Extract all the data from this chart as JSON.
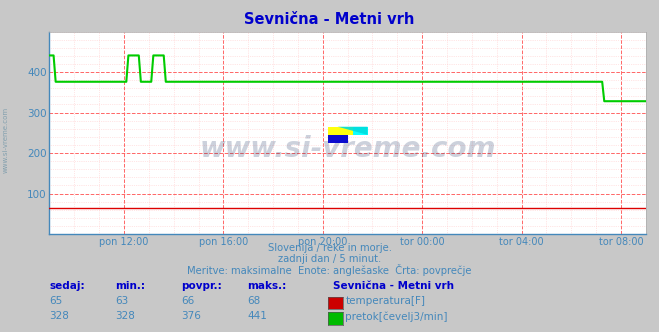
{
  "title": "Sevnična - Metni vrh",
  "title_color": "#0000cc",
  "bg_color": "#c8c8c8",
  "plot_bg_color": "#ffffff",
  "grid_color_major": "#ff6666",
  "grid_color_minor": "#ffcccc",
  "tick_color": "#4488bb",
  "text_color": "#4488bb",
  "bold_color": "#0000cc",
  "ylim": [
    0,
    500
  ],
  "yticks": [
    100,
    200,
    300,
    400
  ],
  "xtick_labels": [
    "pon 12:00",
    "pon 16:00",
    "pon 20:00",
    "tor 00:00",
    "tor 04:00",
    "tor 08:00"
  ],
  "xtick_positions": [
    3,
    7,
    11,
    15,
    19,
    23
  ],
  "xlim": [
    0,
    24
  ],
  "watermark": "www.si-vreme.com",
  "watermark_color": "#1a3060",
  "watermark_alpha": 0.22,
  "sub_text1": "Slovenija / reke in morje.",
  "sub_text2": "zadnji dan / 5 minut.",
  "sub_text3": "Meritve: maksimalne  Enote: anglešaske  Črta: povprečje",
  "legend_title": "Sevnična - Metni vrh",
  "leg_labels": [
    "temperatura[F]",
    "pretok[čevelj3/min]"
  ],
  "leg_colors": [
    "#cc0000",
    "#00bb00"
  ],
  "table_headers": [
    "sedaj:",
    "min.:",
    "povpr.:",
    "maks.:"
  ],
  "table_row1": [
    "65",
    "63",
    "66",
    "68"
  ],
  "table_row2": [
    "328",
    "328",
    "376",
    "441"
  ],
  "temp_color": "#dd0000",
  "flow_color": "#00cc00",
  "sidebar_text": "www.si-vreme.com",
  "sidebar_color": "#7799aa"
}
